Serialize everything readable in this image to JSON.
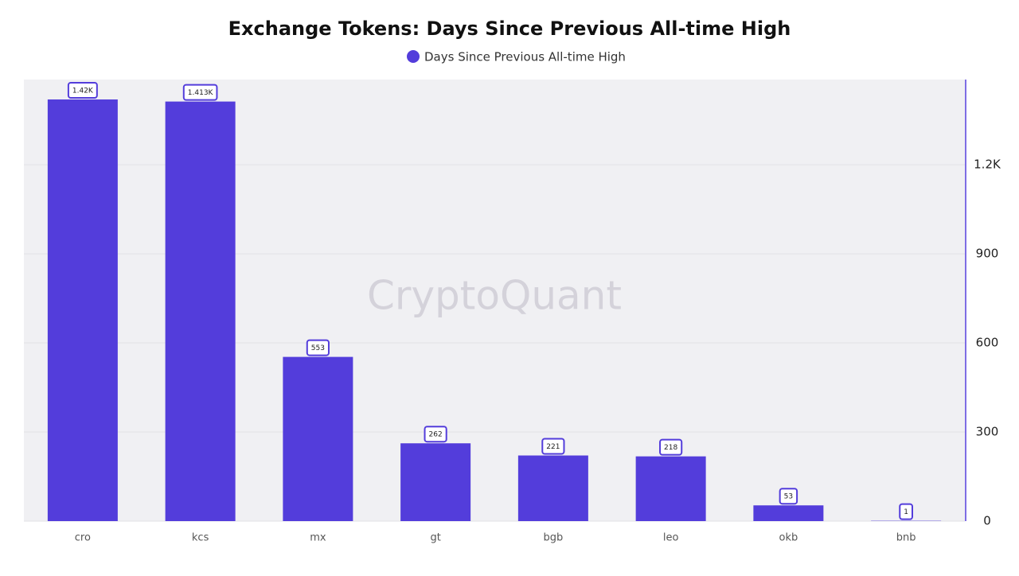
{
  "chart_data": {
    "type": "bar",
    "title": "Exchange Tokens: Days Since Previous All-time High",
    "watermark": "CryptoQuant",
    "categories": [
      "cro",
      "kcs",
      "mx",
      "gt",
      "bgb",
      "leo",
      "okb",
      "bnb"
    ],
    "series": [
      {
        "name": "Days Since Previous All-time High",
        "color": "#533ddb",
        "values": [
          1420,
          1413,
          553,
          262,
          221,
          218,
          53,
          1
        ],
        "value_labels": [
          "1.42K",
          "1.413K",
          "553",
          "262",
          "221",
          "218",
          "53",
          "1"
        ]
      }
    ],
    "ylim": [
      0,
      1487
    ],
    "yticks": [
      0,
      300,
      600,
      900,
      {
        "value": 1200,
        "label": "1.2K"
      }
    ],
    "y_axis_side": "right",
    "grid": true
  }
}
